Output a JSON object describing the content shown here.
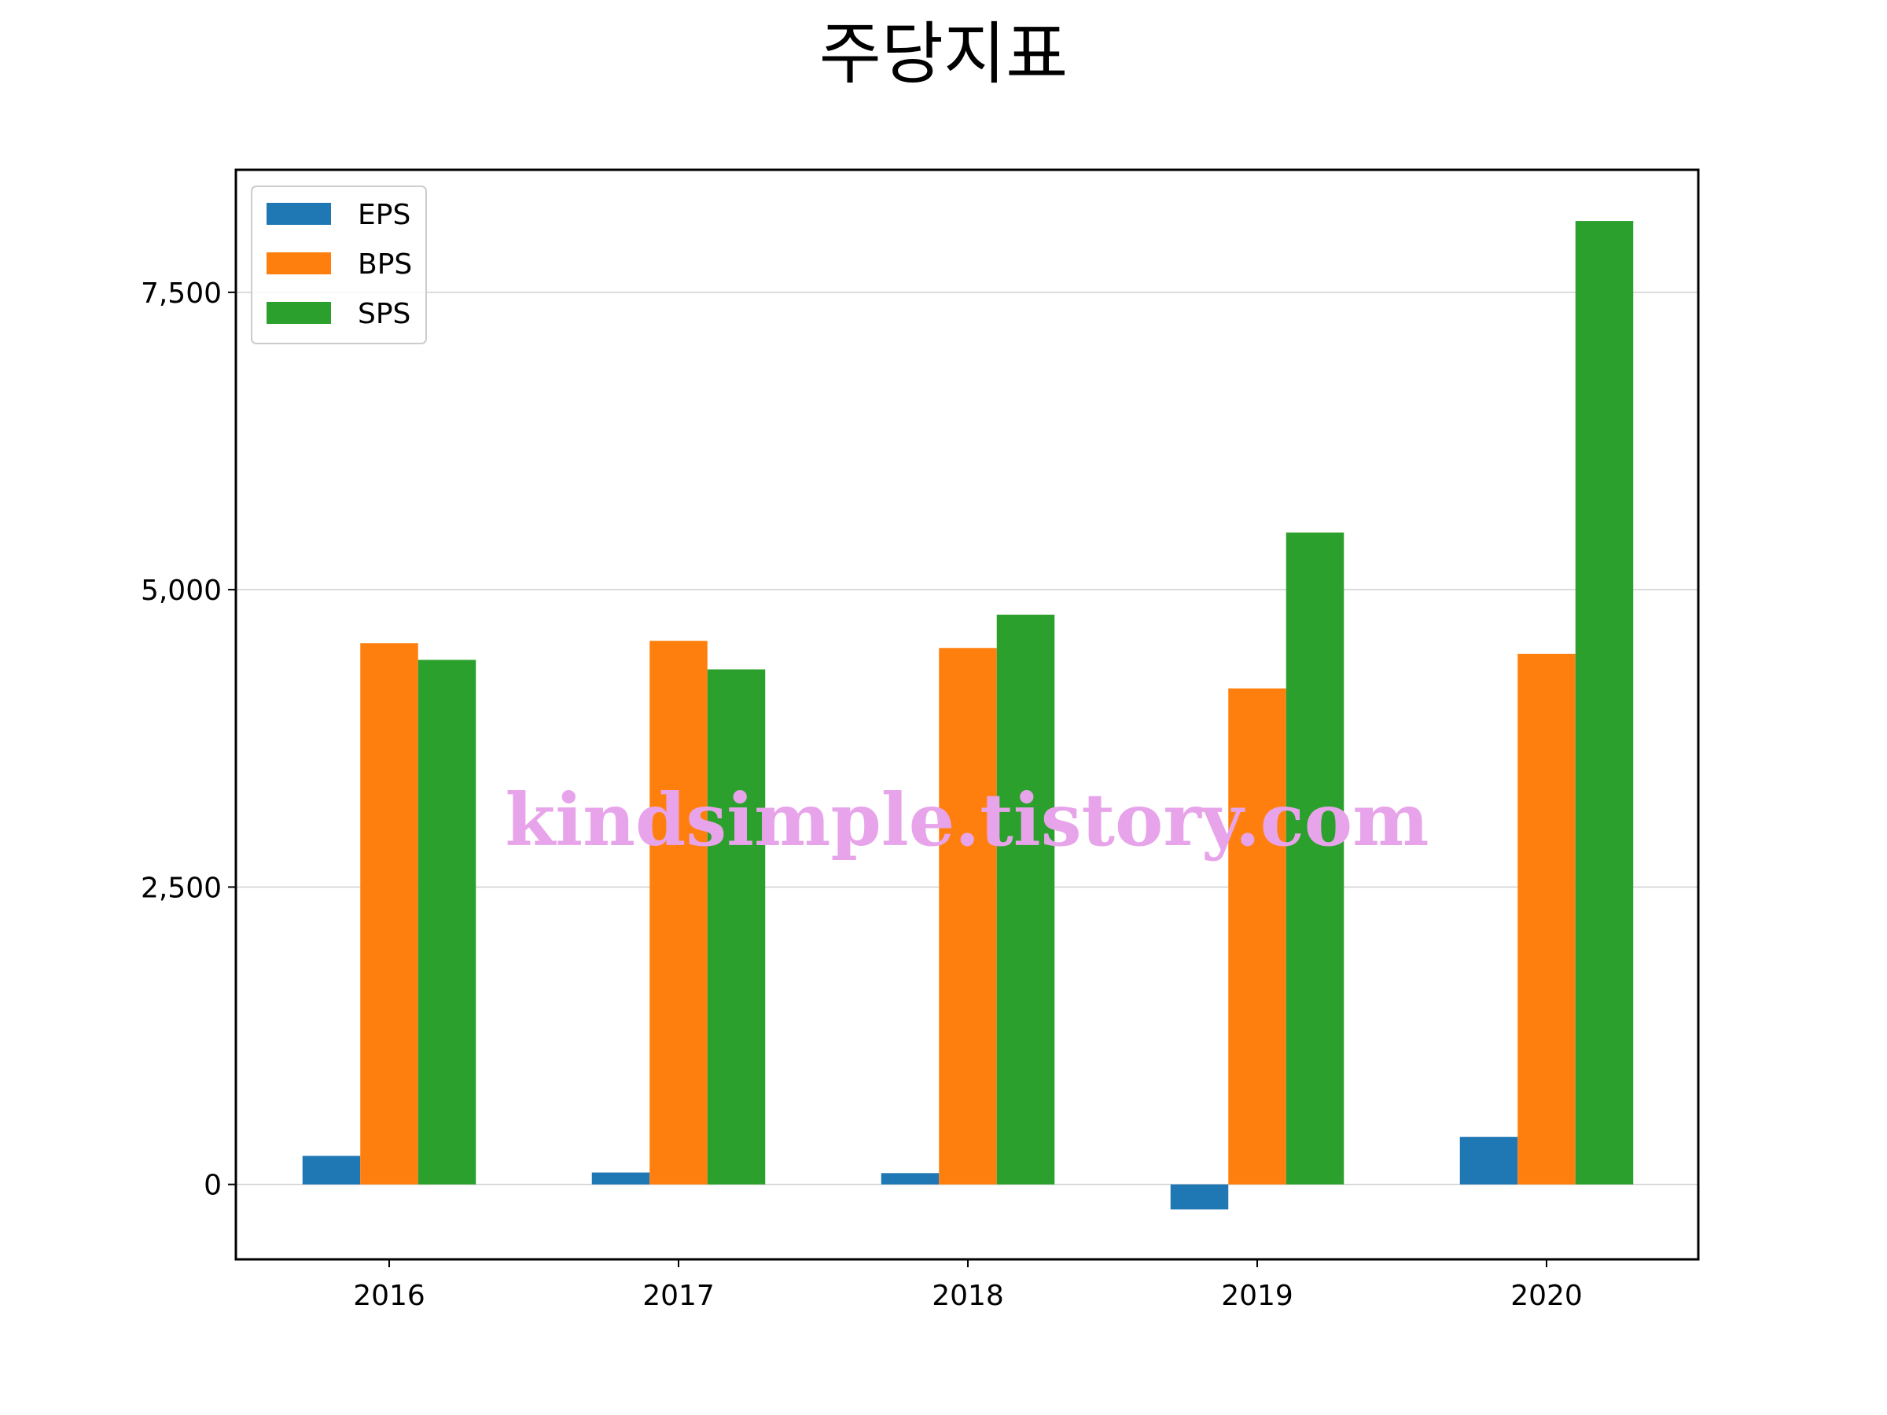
{
  "chart_data": {
    "type": "bar",
    "title": "주당지표",
    "xlabel": "",
    "ylabel": "",
    "categories": [
      "2016",
      "2017",
      "2018",
      "2019",
      "2020"
    ],
    "series": [
      {
        "name": "EPS",
        "color": "#1f77b4",
        "values": [
          240,
          100,
          95,
          -210,
          400
        ]
      },
      {
        "name": "BPS",
        "color": "#ff7f0e",
        "values": [
          4550,
          4570,
          4510,
          4170,
          4460
        ]
      },
      {
        "name": "SPS",
        "color": "#2ca02c",
        "values": [
          4410,
          4330,
          4790,
          5480,
          8100
        ]
      }
    ],
    "ylim": [
      -630,
      8530
    ],
    "yticks": [
      0,
      2500,
      5000,
      7500
    ],
    "ytick_labels": [
      "0",
      "2,500",
      "5,000",
      "7,500"
    ],
    "grid": "horizontal",
    "legend_position": "upper-left",
    "watermark": "kindsimple.tistory.com"
  }
}
